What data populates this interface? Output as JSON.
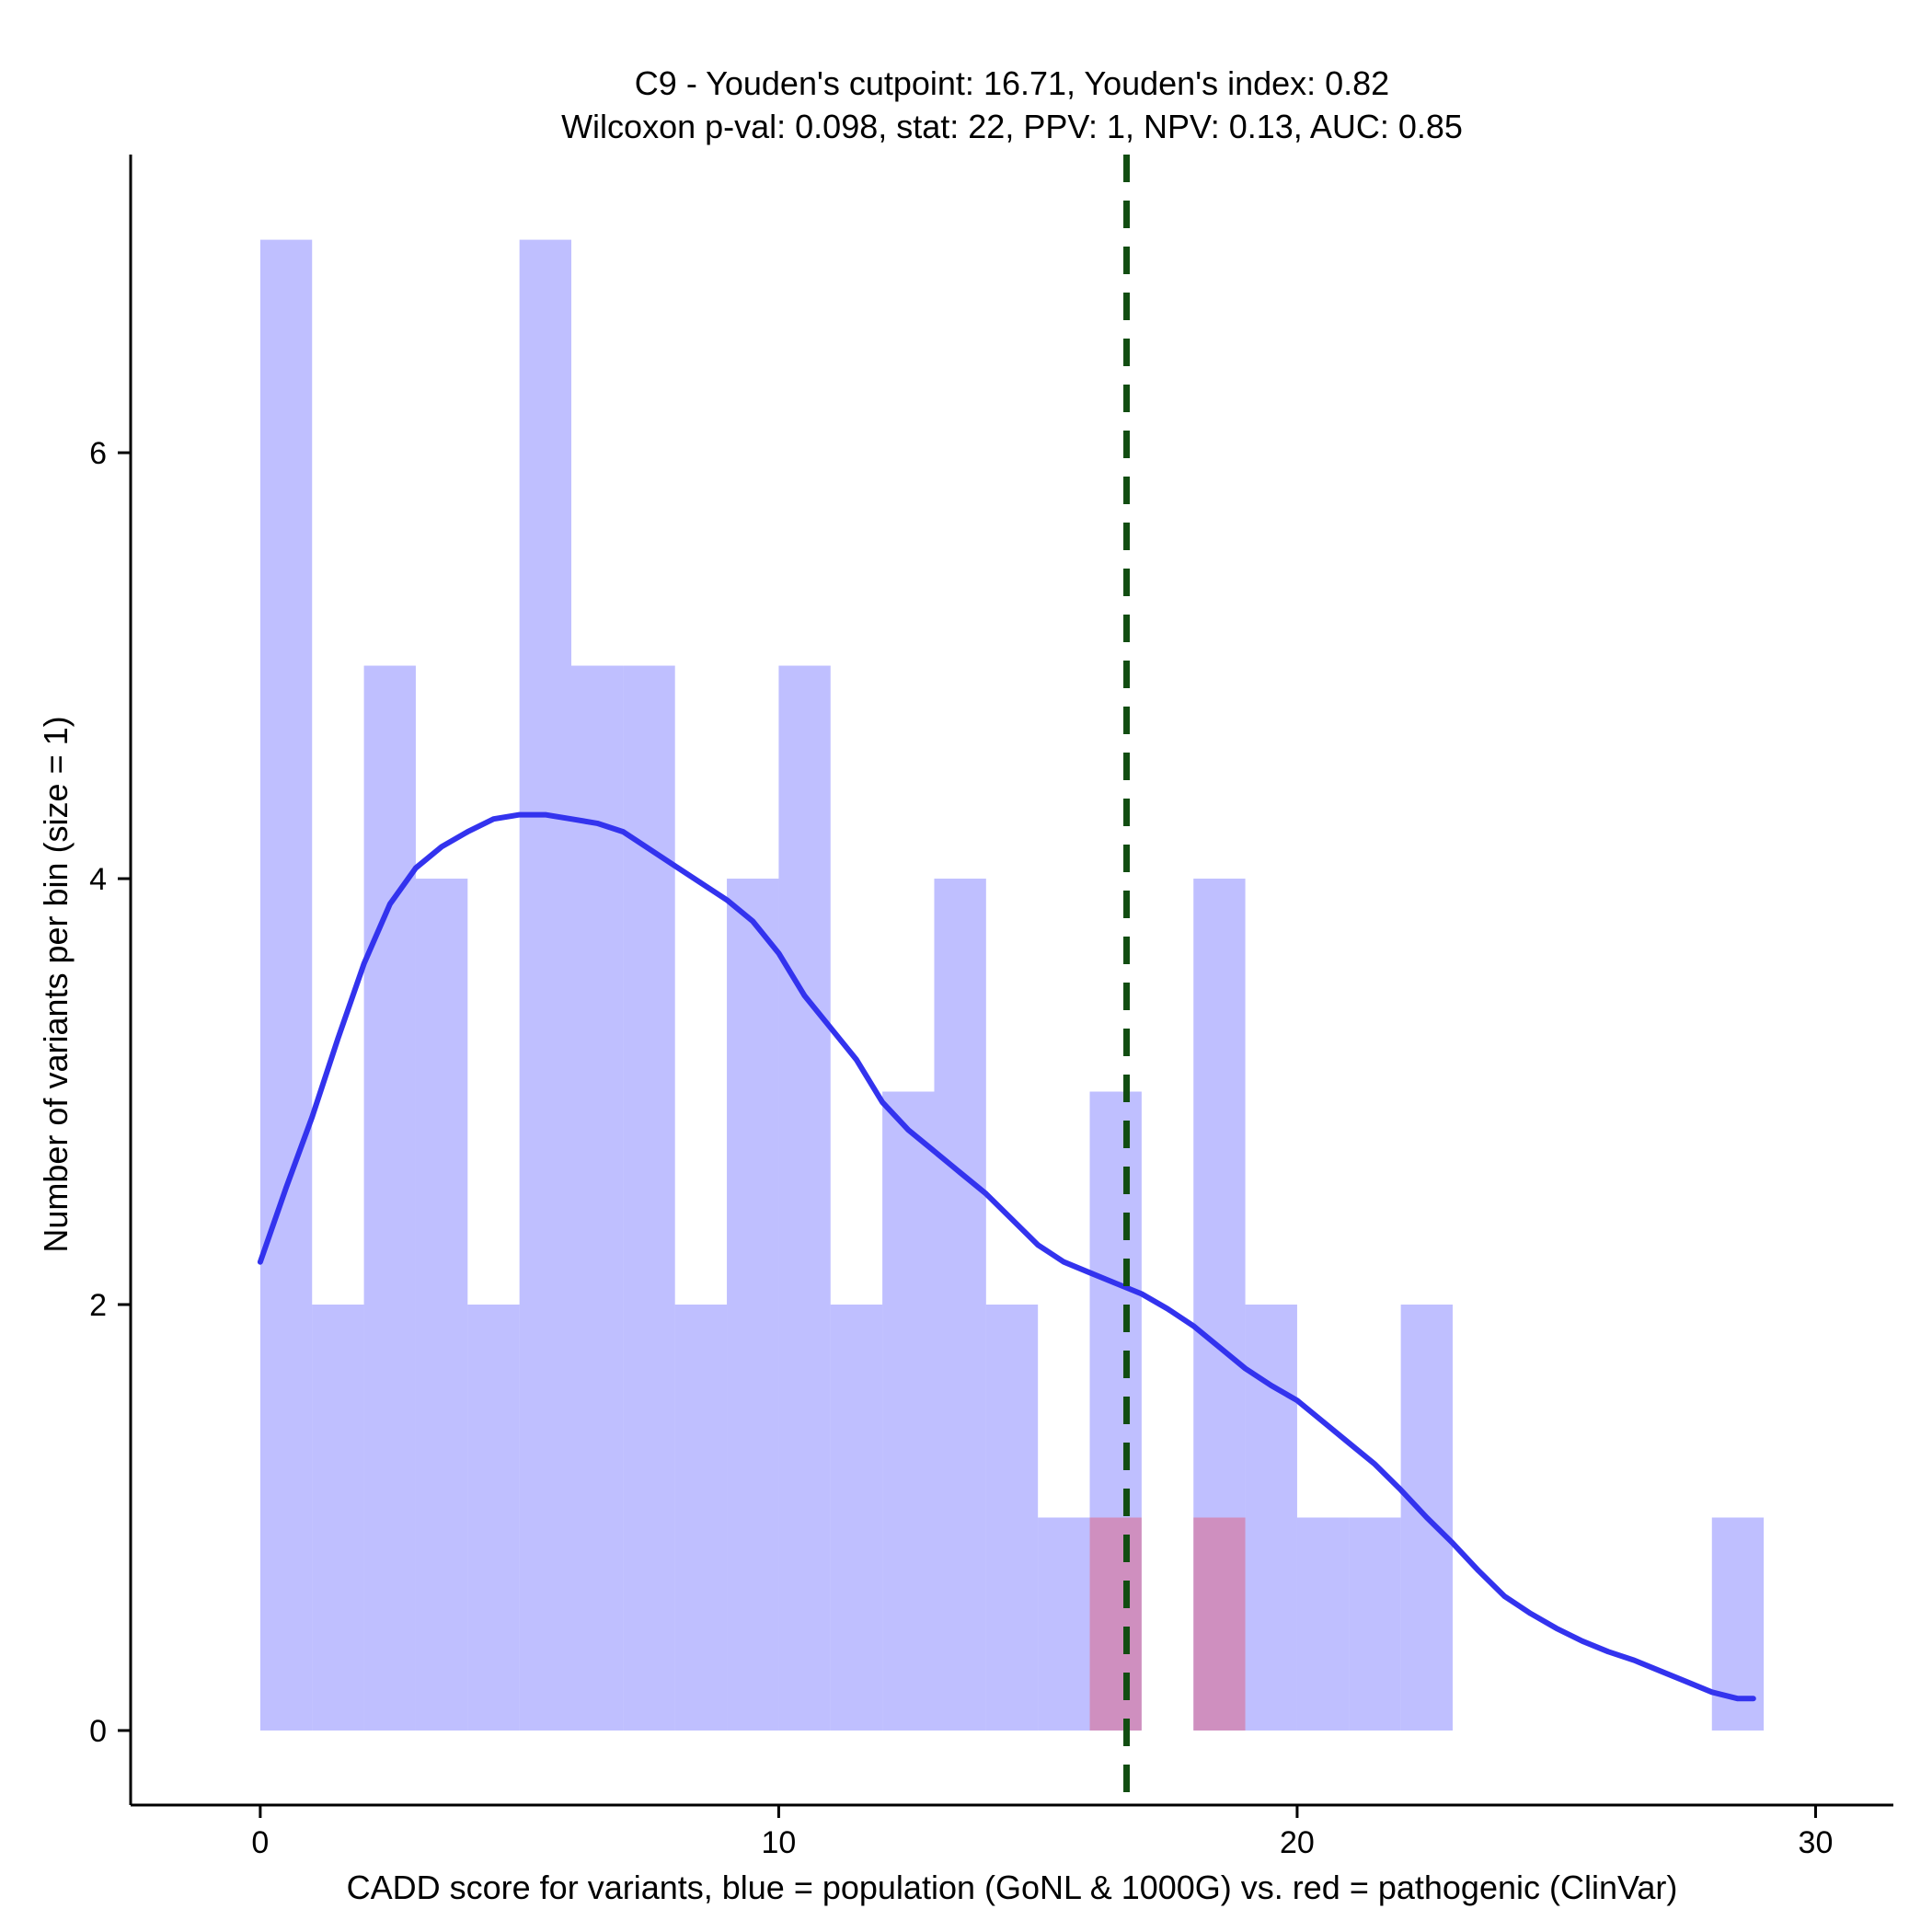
{
  "chart_data": {
    "type": "histogram",
    "title_lines": [
      "C9 - Youden's cutpoint: 16.71, Youden's index: 0.82",
      "Wilcoxon p-val: 0.098, stat: 22, PPV: 1, NPV: 0.13, AUC: 0.85"
    ],
    "xlabel": "CADD score for variants, blue = population (GoNL & 1000G) vs. red = pathogenic (ClinVar)",
    "ylabel": "Number of variants per bin (size = 1)",
    "xlim": [
      -2.5,
      31.5
    ],
    "ylim": [
      -0.35,
      7.4
    ],
    "xticks": [
      0,
      10,
      20,
      30
    ],
    "yticks": [
      0,
      2,
      4,
      6
    ],
    "bin_width": 1,
    "series": [
      {
        "name": "population (GoNL & 1000G)",
        "color": "#8080ff",
        "opacity": 0.5,
        "bins": [
          {
            "start": 0,
            "count": 7
          },
          {
            "start": 1,
            "count": 2
          },
          {
            "start": 2,
            "count": 5
          },
          {
            "start": 3,
            "count": 4
          },
          {
            "start": 4,
            "count": 2
          },
          {
            "start": 5,
            "count": 7
          },
          {
            "start": 6,
            "count": 5
          },
          {
            "start": 7,
            "count": 5
          },
          {
            "start": 8,
            "count": 2
          },
          {
            "start": 9,
            "count": 4
          },
          {
            "start": 10,
            "count": 5
          },
          {
            "start": 11,
            "count": 2
          },
          {
            "start": 12,
            "count": 3
          },
          {
            "start": 13,
            "count": 4
          },
          {
            "start": 14,
            "count": 2
          },
          {
            "start": 15,
            "count": 1
          },
          {
            "start": 16,
            "count": 3
          },
          {
            "start": 17,
            "count": 0
          },
          {
            "start": 18,
            "count": 4
          },
          {
            "start": 19,
            "count": 2
          },
          {
            "start": 20,
            "count": 1
          },
          {
            "start": 21,
            "count": 1
          },
          {
            "start": 22,
            "count": 2
          },
          {
            "start": 28,
            "count": 1
          }
        ]
      },
      {
        "name": "pathogenic (ClinVar)",
        "color": "#ff0000",
        "opacity": 0.25,
        "bins": [
          {
            "start": 16,
            "count": 1
          },
          {
            "start": 18,
            "count": 1
          }
        ]
      }
    ],
    "density_curve": {
      "color": "#3333ee",
      "points": [
        [
          0,
          2.2
        ],
        [
          0.5,
          2.55
        ],
        [
          1,
          2.88
        ],
        [
          1.5,
          3.25
        ],
        [
          2,
          3.6
        ],
        [
          2.5,
          3.88
        ],
        [
          3,
          4.05
        ],
        [
          3.5,
          4.15
        ],
        [
          4,
          4.22
        ],
        [
          4.5,
          4.28
        ],
        [
          5,
          4.3
        ],
        [
          5.5,
          4.3
        ],
        [
          6,
          4.28
        ],
        [
          6.5,
          4.26
        ],
        [
          7,
          4.22
        ],
        [
          7.5,
          4.14
        ],
        [
          8,
          4.06
        ],
        [
          8.5,
          3.98
        ],
        [
          9,
          3.9
        ],
        [
          9.5,
          3.8
        ],
        [
          10,
          3.65
        ],
        [
          10.5,
          3.45
        ],
        [
          11,
          3.3
        ],
        [
          11.5,
          3.15
        ],
        [
          12,
          2.95
        ],
        [
          12.5,
          2.82
        ],
        [
          13,
          2.72
        ],
        [
          13.5,
          2.62
        ],
        [
          14,
          2.52
        ],
        [
          14.5,
          2.4
        ],
        [
          15,
          2.28
        ],
        [
          15.5,
          2.2
        ],
        [
          16,
          2.15
        ],
        [
          16.5,
          2.1
        ],
        [
          17,
          2.05
        ],
        [
          17.5,
          1.98
        ],
        [
          18,
          1.9
        ],
        [
          18.5,
          1.8
        ],
        [
          19,
          1.7
        ],
        [
          19.5,
          1.62
        ],
        [
          20,
          1.55
        ],
        [
          20.5,
          1.45
        ],
        [
          21,
          1.35
        ],
        [
          21.5,
          1.25
        ],
        [
          22,
          1.13
        ],
        [
          22.5,
          1.0
        ],
        [
          23,
          0.88
        ],
        [
          23.5,
          0.75
        ],
        [
          24,
          0.63
        ],
        [
          24.5,
          0.55
        ],
        [
          25,
          0.48
        ],
        [
          25.5,
          0.42
        ],
        [
          26,
          0.37
        ],
        [
          26.5,
          0.33
        ],
        [
          27,
          0.28
        ],
        [
          27.5,
          0.23
        ],
        [
          28,
          0.18
        ],
        [
          28.5,
          0.15
        ],
        [
          28.8,
          0.15
        ]
      ]
    },
    "cutpoint": {
      "value": 16.71,
      "color": "#114d11",
      "style": "dashed"
    }
  }
}
